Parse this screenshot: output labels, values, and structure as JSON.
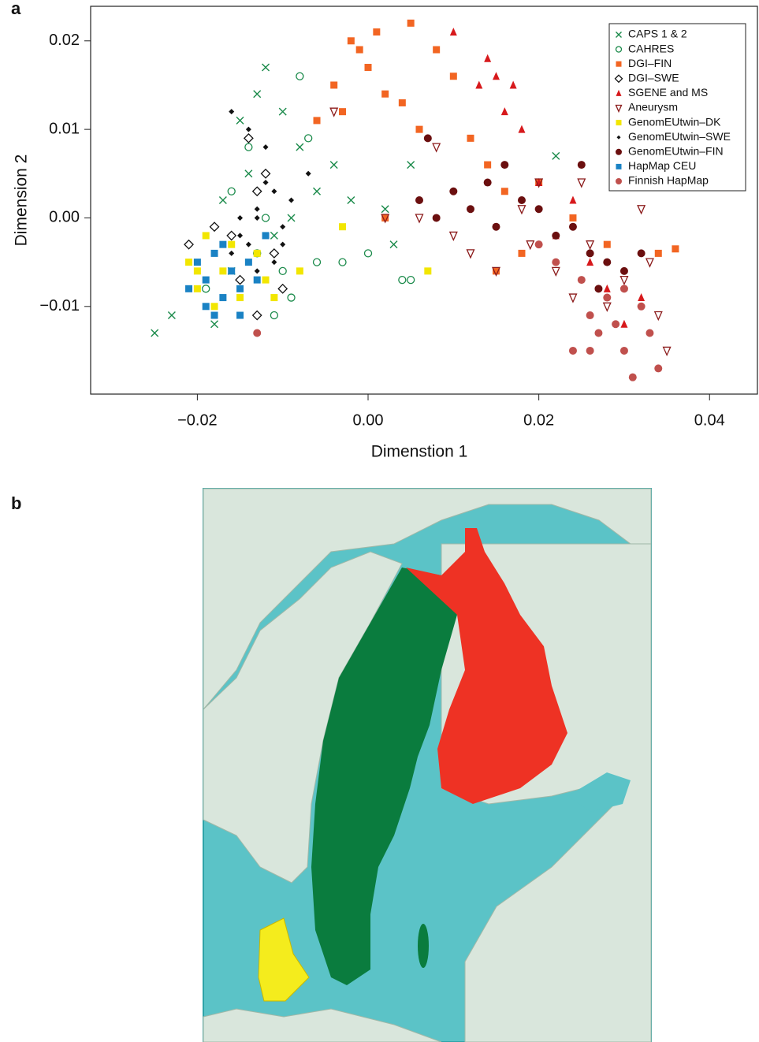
{
  "panel_labels": [
    "a",
    "b"
  ],
  "chart_data": {
    "type": "scatter",
    "x_label": "Dimenstion 1",
    "y_label": "Dimension 2",
    "xlim": [
      -0.0325,
      0.0457
    ],
    "ylim": [
      -0.0199,
      0.0239
    ],
    "xticks": [
      {
        "value": -0.02,
        "label": "−0.02"
      },
      {
        "value": 0,
        "label": "0.00"
      },
      {
        "value": 0.02,
        "label": "0.02"
      },
      {
        "value": 0.04,
        "label": "0.04"
      }
    ],
    "yticks": [
      {
        "value": -0.01,
        "label": "−0.01"
      },
      {
        "value": 0,
        "label": "0.00"
      },
      {
        "value": 0.01,
        "label": "0.01"
      },
      {
        "value": 0.02,
        "label": "0.02"
      }
    ],
    "legend": "upper right",
    "series": [
      {
        "name": "CAPS 1 & 2",
        "color": "#1a8a4a",
        "marker": "x",
        "x": [
          -0.025,
          -0.023,
          -0.018,
          -0.016,
          -0.014,
          -0.013,
          -0.012,
          -0.01,
          -0.008,
          -0.006,
          -0.004,
          -0.002,
          0.002,
          0.005,
          -0.011,
          -0.015,
          -0.009,
          0.003,
          0.022,
          -0.017
        ],
        "values": [
          -0.013,
          -0.011,
          -0.012,
          -0.006,
          0.005,
          0.014,
          0.017,
          0.012,
          0.008,
          0.003,
          0.006,
          0.002,
          0.001,
          0.006,
          -0.002,
          0.011,
          0,
          -0.003,
          0.007,
          0.002
        ]
      },
      {
        "name": "CAHRES",
        "color": "#1a8a4a",
        "marker": "open-circle",
        "x": [
          -0.019,
          -0.016,
          -0.014,
          -0.012,
          -0.01,
          -0.008,
          -0.006,
          -0.003,
          0.004,
          0.005,
          -0.011,
          -0.007,
          -0.013,
          -0.009,
          0
        ],
        "values": [
          -0.008,
          0.003,
          0.008,
          0,
          -0.006,
          0.016,
          -0.005,
          -0.005,
          -0.007,
          -0.007,
          -0.011,
          0.009,
          -0.004,
          -0.009,
          -0.004
        ]
      },
      {
        "name": "DGI–FIN",
        "color": "#f26522",
        "marker": "square",
        "x": [
          -0.006,
          -0.004,
          -0.002,
          0,
          0.002,
          0.005,
          0.004,
          0.008,
          -0.003,
          0.01,
          0.012,
          0.014,
          0.016,
          0.02,
          0.024,
          0.028,
          0.034,
          0.036,
          0.018,
          0.002,
          0.006,
          0.015,
          -0.001,
          0.001
        ],
        "values": [
          0.011,
          0.015,
          0.02,
          0.017,
          0.014,
          0.022,
          0.013,
          0.019,
          0.012,
          0.016,
          0.009,
          0.006,
          0.003,
          0.004,
          0,
          -0.003,
          -0.004,
          -0.0035,
          -0.004,
          0,
          0.01,
          -0.006,
          0.019,
          0.021
        ]
      },
      {
        "name": "DGI–SWE",
        "color": "#111111",
        "marker": "open-diamond",
        "x": [
          -0.021,
          -0.018,
          -0.015,
          -0.013,
          -0.012,
          -0.011,
          -0.014,
          -0.01,
          -0.016,
          -0.013
        ],
        "values": [
          -0.003,
          -0.001,
          -0.007,
          -0.011,
          0.005,
          -0.004,
          0.009,
          -0.008,
          -0.002,
          0.003
        ]
      },
      {
        "name": "SGENE and MS",
        "color": "#d7191c",
        "marker": "triangle",
        "x": [
          0.01,
          0.014,
          0.015,
          0.016,
          0.013,
          0.018,
          0.02,
          0.024,
          0.028,
          0.03,
          0.032,
          0.022,
          0.017,
          0.026
        ],
        "values": [
          0.021,
          0.018,
          0.016,
          0.012,
          0.015,
          0.01,
          0.004,
          0.002,
          -0.008,
          -0.012,
          -0.009,
          -0.002,
          0.015,
          -0.005
        ]
      },
      {
        "name": "Aneurysm",
        "color": "#8b1a1a",
        "marker": "open-triangle-down",
        "x": [
          -0.004,
          0.002,
          0.006,
          0.01,
          0.012,
          0.015,
          0.018,
          0.02,
          0.022,
          0.024,
          0.026,
          0.028,
          0.03,
          0.032,
          0.034,
          0.035,
          0.033,
          0.019,
          0.008,
          0.025
        ],
        "values": [
          0.012,
          0,
          0,
          -0.002,
          -0.004,
          -0.006,
          0.001,
          0.004,
          -0.006,
          -0.009,
          -0.003,
          -0.01,
          -0.007,
          0.001,
          -0.011,
          -0.015,
          -0.005,
          -0.003,
          0.008,
          0.004
        ]
      },
      {
        "name": "GenomEUtwin–DK",
        "color": "#f2e600",
        "marker": "square",
        "x": [
          -0.021,
          -0.02,
          -0.019,
          -0.018,
          -0.017,
          -0.016,
          -0.015,
          -0.013,
          -0.012,
          -0.008,
          -0.003,
          0.007,
          -0.011,
          -0.02
        ],
        "values": [
          -0.005,
          -0.008,
          -0.002,
          -0.01,
          -0.006,
          -0.003,
          -0.009,
          -0.004,
          -0.007,
          -0.006,
          -0.001,
          -0.006,
          -0.009,
          -0.006
        ]
      },
      {
        "name": "GenomEUtwin–SWE",
        "color": "#111111",
        "marker": "diamond",
        "x": [
          -0.016,
          -0.015,
          -0.014,
          -0.013,
          -0.012,
          -0.011,
          -0.01,
          -0.013,
          -0.012,
          -0.014,
          -0.009,
          -0.011,
          -0.015,
          -0.007,
          -0.01,
          -0.013,
          -0.016,
          -0.012
        ],
        "values": [
          -0.004,
          0,
          -0.003,
          0.001,
          -0.002,
          0.003,
          -0.001,
          -0.006,
          0.008,
          0.01,
          0.002,
          -0.005,
          -0.002,
          0.005,
          -0.003,
          0,
          0.012,
          0.004
        ]
      },
      {
        "name": "GenomEUtwin–FIN",
        "color": "#6b0f0f",
        "marker": "circle",
        "x": [
          0.006,
          0.008,
          0.01,
          0.012,
          0.014,
          0.016,
          0.018,
          0.02,
          0.022,
          0.024,
          0.026,
          0.028,
          0.03,
          0.032,
          0.025,
          0.015,
          0.027,
          0.007
        ],
        "values": [
          0.002,
          0,
          0.003,
          0.001,
          0.004,
          0.006,
          0.002,
          0.001,
          -0.002,
          -0.001,
          -0.004,
          -0.005,
          -0.006,
          -0.004,
          0.006,
          -0.001,
          -0.008,
          0.009
        ]
      },
      {
        "name": "HapMap CEU",
        "color": "#1a82c4",
        "marker": "square",
        "x": [
          -0.021,
          -0.02,
          -0.019,
          -0.018,
          -0.018,
          -0.017,
          -0.016,
          -0.015,
          -0.014,
          -0.013,
          -0.017,
          -0.019,
          -0.015,
          -0.012
        ],
        "values": [
          -0.008,
          -0.005,
          -0.007,
          -0.004,
          -0.011,
          -0.009,
          -0.006,
          -0.008,
          -0.005,
          -0.007,
          -0.003,
          -0.01,
          -0.011,
          -0.002
        ]
      },
      {
        "name": "Finnish HapMap",
        "color": "#c0504d",
        "marker": "circle",
        "x": [
          0.025,
          0.026,
          0.027,
          0.028,
          0.029,
          0.03,
          0.031,
          0.032,
          0.033,
          0.034,
          0.026,
          0.02,
          0.022,
          0.03,
          0.024,
          -0.013
        ],
        "values": [
          -0.007,
          -0.011,
          -0.013,
          -0.009,
          -0.012,
          -0.015,
          -0.018,
          -0.01,
          -0.013,
          -0.017,
          -0.015,
          -0.003,
          -0.005,
          -0.008,
          -0.015,
          -0.013
        ]
      }
    ]
  }
}
